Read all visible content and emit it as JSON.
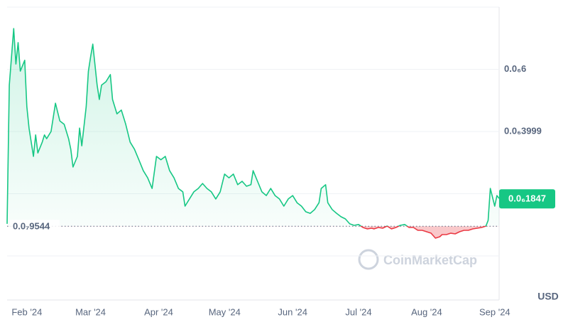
{
  "chart_data": {
    "type": "line",
    "x": [
      23,
      24,
      26,
      27,
      28,
      29,
      31,
      32,
      33,
      35,
      36,
      37,
      39,
      40,
      41,
      43,
      45,
      47,
      49,
      51,
      52,
      53,
      55,
      56,
      57,
      59,
      60,
      61,
      62,
      64,
      65,
      66,
      68,
      70,
      71,
      73,
      75,
      77,
      79,
      81,
      83,
      85,
      87,
      89,
      91,
      93,
      95,
      97,
      99,
      101,
      103,
      104,
      106,
      108,
      110,
      112,
      114,
      116,
      118,
      120,
      122,
      124,
      126,
      128,
      130,
      132,
      134,
      135,
      137,
      139,
      141,
      143,
      145,
      147,
      149,
      151,
      153,
      155,
      157,
      159,
      161,
      163,
      165,
      166,
      168,
      169,
      171,
      173,
      175,
      177,
      179,
      181,
      183,
      185,
      187,
      189,
      190,
      192,
      194,
      196,
      198,
      200,
      202,
      204,
      206,
      208,
      210,
      212,
      214,
      216,
      218,
      220,
      221,
      223,
      225,
      227,
      229,
      231,
      233,
      235,
      237,
      239,
      241,
      242,
      243,
      245,
      246,
      247
    ],
    "values": [
      1.03e-07,
      5.49e-07,
      7.31e-07,
      6.17e-07,
      6.86e-07,
      5.94e-07,
      6.29e-07,
      4.8e-07,
      4.11e-07,
      3.2e-07,
      3.89e-07,
      3.31e-07,
      3.66e-07,
      3.89e-07,
      3.77e-07,
      4e-07,
      4.91e-07,
      4.34e-07,
      4.23e-07,
      3.77e-07,
      3.43e-07,
      2.86e-07,
      3.2e-07,
      4.11e-07,
      3.54e-07,
      4.8e-07,
      5.94e-07,
      6.4e-07,
      6.81e-07,
      5.49e-07,
      5.03e-07,
      5.49e-07,
      5.6e-07,
      5.83e-07,
      5.03e-07,
      4.57e-07,
      4.69e-07,
      4.23e-07,
      3.66e-07,
      3.43e-07,
      3.09e-07,
      2.74e-07,
      2.51e-07,
      2.17e-07,
      3.2e-07,
      3.09e-07,
      3.2e-07,
      2.74e-07,
      2.51e-07,
      2.17e-07,
      2.06e-07,
      1.6e-07,
      1.83e-07,
      2.06e-07,
      2.17e-07,
      2.33e-07,
      2.17e-07,
      2.06e-07,
      1.83e-07,
      2.06e-07,
      2.63e-07,
      2.51e-07,
      2.63e-07,
      2.29e-07,
      2.4e-07,
      2.24e-07,
      2.29e-07,
      2.74e-07,
      2.4e-07,
      2.06e-07,
      1.94e-07,
      2.17e-07,
      1.94e-07,
      1.83e-07,
      1.6e-07,
      1.83e-07,
      1.94e-07,
      1.71e-07,
      1.6e-07,
      1.42e-07,
      1.37e-07,
      1.49e-07,
      1.71e-07,
      2.17e-07,
      2.29e-07,
      1.71e-07,
      1.49e-07,
      1.37e-07,
      1.26e-07,
      1.19e-07,
      1.03e-07,
      9.83e-08,
      1.01e-07,
      9.14e-08,
      8.69e-08,
      8.91e-08,
      8.69e-08,
      9.14e-08,
      8.91e-08,
      9.6e-08,
      8.69e-08,
      9.14e-08,
      9.83e-08,
      1.01e-07,
      9.14e-08,
      9.14e-08,
      8.23e-08,
      8.23e-08,
      7.77e-08,
      7.31e-08,
      5.71e-08,
      6.17e-08,
      6.86e-08,
      6.86e-08,
      7.31e-08,
      7.09e-08,
      7.77e-08,
      8.23e-08,
      8.23e-08,
      8.69e-08,
      8.91e-08,
      9.14e-08,
      9.6e-08,
      1.14e-07,
      2.17e-07,
      1.6e-07,
      1.94e-07,
      1.847e-07
    ],
    "color": "#16c784",
    "down_color": "#ea3943",
    "xlim": [
      23,
      247
    ],
    "xticks": [
      {
        "value": 32,
        "label": "Feb '24"
      },
      {
        "value": 61,
        "label": "Mar '24"
      },
      {
        "value": 92,
        "label": "Apr '24"
      },
      {
        "value": 122,
        "label": "May '24"
      },
      {
        "value": 153,
        "label": "Jun '24"
      },
      {
        "value": 183,
        "label": "Jul '24"
      },
      {
        "value": 214,
        "label": "Aug '24"
      },
      {
        "value": 245,
        "label": "Sep '24"
      }
    ],
    "ylim": [
      0,
      8e-07
    ],
    "yticks": [
      {
        "value": 6e-07,
        "label": "0.0₆6"
      },
      {
        "value": 3.999e-07,
        "label": "0.0₆3999"
      },
      {
        "value": 2e-07,
        "label": null
      },
      {
        "value": 0,
        "label": null
      }
    ],
    "grid": true,
    "baseline": {
      "value": 9.544e-08,
      "label": "0.0₇9544"
    },
    "last_price": {
      "value": 1.847e-07,
      "label": "0.0₆1847"
    },
    "unit": "USD",
    "watermark": "CoinMarketCap"
  }
}
